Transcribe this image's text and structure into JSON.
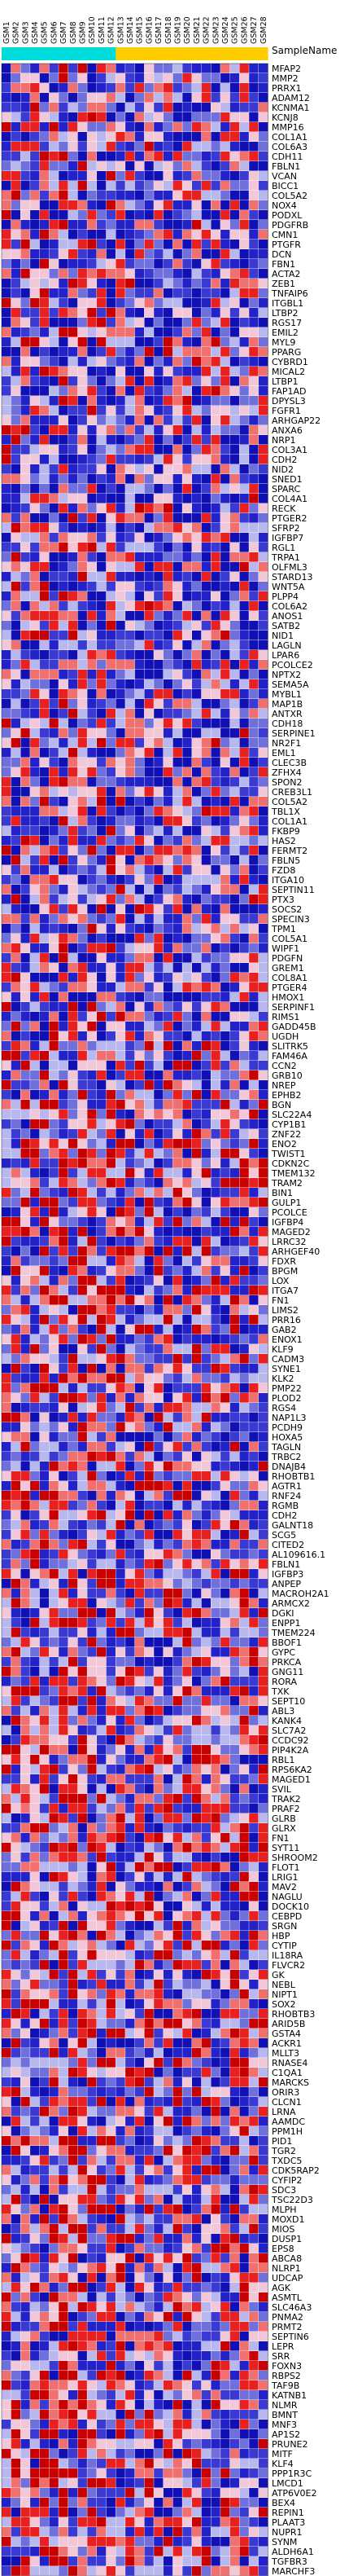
{
  "chart_data": {
    "type": "heatmap",
    "header_label": "SampleName",
    "column_groups": [
      {
        "color": "#00dcdc",
        "count": 12
      },
      {
        "color": "#ffcc00",
        "count": 16
      }
    ],
    "samples": [
      "GSM1",
      "GSM2",
      "GSM3",
      "GSM4",
      "GSM5",
      "GSM6",
      "GSM7",
      "GSM8",
      "GSM9",
      "GSM10",
      "GSM11",
      "GSM12",
      "GSM13",
      "GSM14",
      "GSM15",
      "GSM16",
      "GSM17",
      "GSM18",
      "GSM19",
      "GSM20",
      "GSM21",
      "GSM22",
      "GSM23",
      "GSM24",
      "GSM25",
      "GSM26",
      "GSM27",
      "GSM28"
    ],
    "genes": [
      "MFAP2",
      "MMP2",
      "PRRX1",
      "ADAM12",
      "KCNMA1",
      "KCNJ8",
      "MMP16",
      "COL1A1",
      "COL6A3",
      "CDH11",
      "FBLN1",
      "VCAN",
      "BICC1",
      "COL5A2",
      "NOX4",
      "PODXL",
      "PDGFRB",
      "CMN1",
      "PTGFR",
      "DCN",
      "FBN1",
      "ACTA2",
      "ZEB1",
      "TNFAIP6",
      "ITGBL1",
      "LTBP2",
      "RGS17",
      "EMIL2",
      "MYL9",
      "PPARG",
      "CYBRD1",
      "MICAL2",
      "LTBP1",
      "FAP1AD",
      "DPYSL3",
      "FGFR1",
      "ARHGAP22",
      "ANXA6",
      "NRP1",
      "COL3A1",
      "CDH2",
      "NID2",
      "SNED1",
      "SPARC",
      "COL4A1",
      "RECK",
      "PTGER2",
      "SFRP2",
      "IGFBP7",
      "RGL1",
      "TRPA1",
      "OLFML3",
      "STARD13",
      "WNT5A",
      "PLPP4",
      "COL6A2",
      "ANOS1",
      "SATB2",
      "NID1",
      "LAGLN",
      "LPAR6",
      "PCOLCE2",
      "NPTX2",
      "SEMA5A",
      "MYBL1",
      "MAP1B",
      "ANTXR",
      "CDH18",
      "SERPINE1",
      "NR2F1",
      "EML1",
      "CLEC3B",
      "ZFHX4",
      "SPON2",
      "CREB3L1",
      "COL5A2",
      "TBL1X",
      "COL1A1",
      "FKBP9",
      "HAS2",
      "FERMT2",
      "FBLN5",
      "FZD8",
      "ITGA10",
      "SEPTIN11",
      "PTX3",
      "SOCS2",
      "SPECIN3",
      "TPM1",
      "COL5A1",
      "WIPF1",
      "PDGFN",
      "GREM1",
      "COL8A1",
      "PTGER4",
      "HMOX1",
      "SERPINF1",
      "RIMS1",
      "GADD45B",
      "UGDH",
      "SLITRK5",
      "FAM46A",
      "CCN2",
      "GRB10",
      "NREP",
      "EPHB2",
      "BGN",
      "SLC22A4",
      "CYP1B1",
      "ZNF22",
      "ENO2",
      "TWIST1",
      "CDKN2C",
      "TMEM132",
      "TRAM2",
      "BIN1",
      "GULP1",
      "PCOLCE",
      "IGFBP4",
      "MAGED2",
      "LRRC32",
      "ARHGEF40",
      "FDXR",
      "BPGM",
      "LOX",
      "ITGA7",
      "FN1",
      "LIMS2",
      "PRR16",
      "GAB2",
      "ENOX1",
      "KLF9",
      "CADM3",
      "SYNE1",
      "KLK2",
      "PMP22",
      "PLOD2",
      "RGS4",
      "NAP1L3",
      "PCDH9",
      "HOXA5",
      "TAGLN",
      "TRBC2",
      "DNAJB4",
      "RHOBTB1",
      "AGTR1",
      "RNF24",
      "RGMB",
      "CDH2",
      "GALNT18",
      "SCG5",
      "CITED2",
      "AL109616.1",
      "FBLN1",
      "IGFBP3",
      "ANPEP",
      "MACROH2A1",
      "ARMCX2",
      "DGKI",
      "ENPP1",
      "TMEM224",
      "BBOF1",
      "GYPC",
      "PRKCA",
      "GNG11",
      "RORA",
      "TXK",
      "SEPT10",
      "ABL3",
      "KANK4",
      "SLC7A2",
      "CCDC92",
      "PIP4K2A",
      "RBL1",
      "RPS6KA2",
      "MAGED1",
      "SVIL",
      "TRAK2",
      "PRAF2",
      "GLRB",
      "GLRX",
      "FN1",
      "SYT11",
      "SHROOM2",
      "FLOT1",
      "LRIG1",
      "MAV2",
      "NAGLU",
      "DOCK10",
      "CEBPD",
      "SRGN",
      "HBP",
      "CYTIP",
      "IL18RA",
      "FLVCR2",
      "GK",
      "NEBL",
      "NIPT1",
      "SOX2",
      "RHOBTB3",
      "ARID5B",
      "GSTA4",
      "ACKR1",
      "MLLT3",
      "RNASE4",
      "C1QA1",
      "MARCKS",
      "ORIR3",
      "CLCN1",
      "LRNA",
      "AAMDC",
      "PPM1H",
      "PID1",
      "TGR2",
      "TXDC5",
      "CDK5RAP2",
      "CYFIP2",
      "SDC3",
      "TSC22D3",
      "MLPH",
      "MOXD1",
      "MIOS",
      "DUSP1",
      "EPS8",
      "ABCA8",
      "NLRP1",
      "UDCAP",
      "AGK",
      "ASMTL",
      "SLC46A3",
      "PNMA2",
      "PRMT2",
      "SEPTIN6",
      "LEPR",
      "SRR",
      "FOXN3",
      "RBPS2",
      "TAF9B",
      "KATNB1",
      "NLMR",
      "BMNT",
      "MNF3",
      "AP1S2",
      "PRUNE2",
      "MITF",
      "KLF4",
      "PPP1R3C",
      "LMCD1",
      "ATP6V0E2",
      "BEX4",
      "REPIN1",
      "PLAAT3",
      "NUPR1",
      "SYNM",
      "ALDH6A1",
      "TGFBR3",
      "MARCHF3"
    ]
  }
}
